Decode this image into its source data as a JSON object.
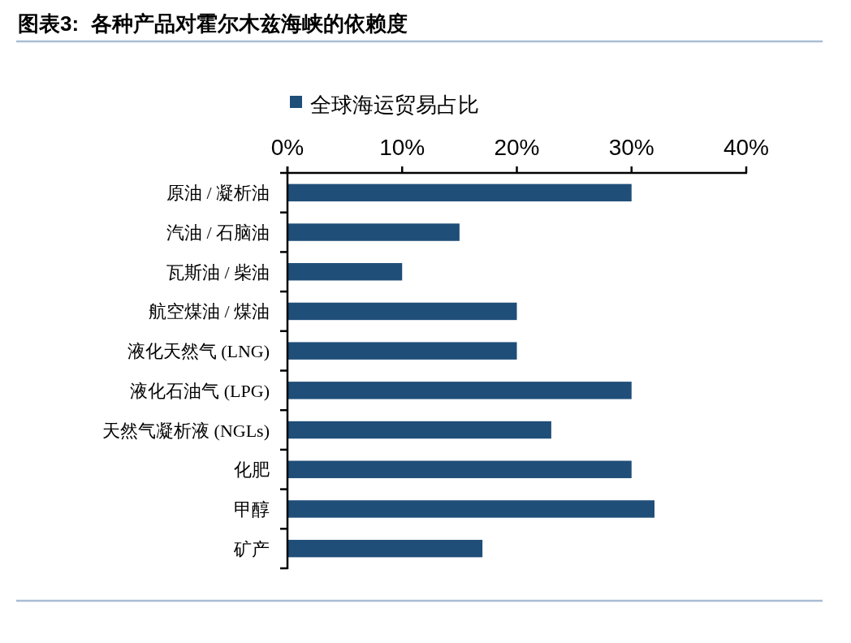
{
  "chart_data": {
    "type": "bar",
    "orientation": "horizontal",
    "title": "图表3:  各种产品对霍尔木兹海峡的依赖度",
    "categories": [
      "原油 / 凝析油",
      "汽油 / 石脑油",
      "瓦斯油 / 柴油",
      "航空煤油 / 煤油",
      "液化天然气 (LNG)",
      "液化石油气 (LPG)",
      "天然气凝析液 (NGLs)",
      "化肥",
      "甲醇",
      "矿产"
    ],
    "series": [
      {
        "name": "全球海运贸易占比",
        "color": "#1f4e79",
        "values": [
          30,
          15,
          10,
          20,
          20,
          30,
          23,
          30,
          32,
          17
        ]
      }
    ],
    "xlim": [
      0,
      40
    ],
    "xticks": [
      {
        "value": 0,
        "label": "0%"
      },
      {
        "value": 10,
        "label": "10%"
      },
      {
        "value": 20,
        "label": "20%"
      },
      {
        "value": 30,
        "label": "30%"
      },
      {
        "value": 40,
        "label": "40%"
      }
    ],
    "legend": "top",
    "grid": false
  }
}
